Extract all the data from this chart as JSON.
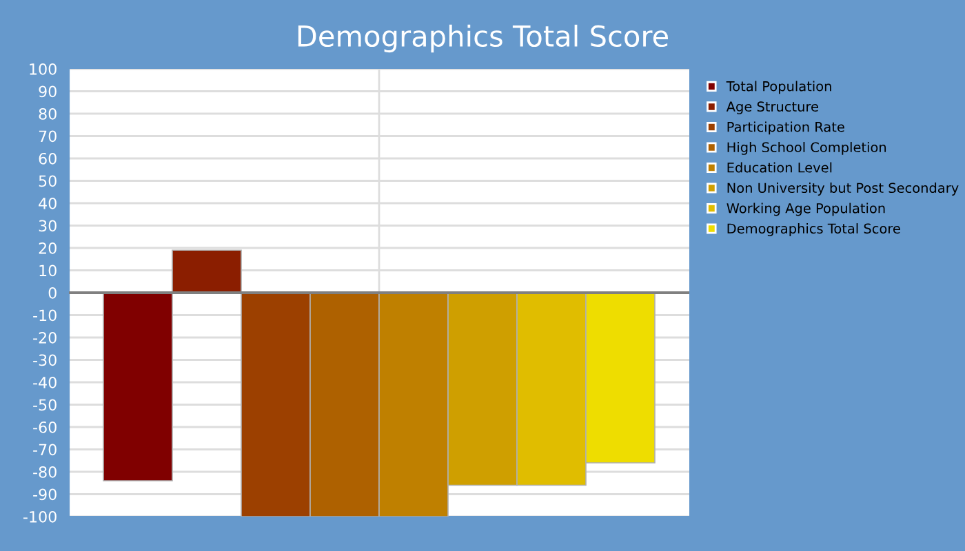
{
  "chart_data": {
    "type": "bar",
    "title": "Demographics Total Score",
    "categories": [
      null
    ],
    "series": [
      {
        "name": "Total Population",
        "color": "#800000",
        "values": [
          -84
        ]
      },
      {
        "name": "Age Structure",
        "color": "#8b1e00",
        "values": [
          19
        ]
      },
      {
        "name": "Participation Rate",
        "color": "#9c4000",
        "values": [
          -100
        ]
      },
      {
        "name": "High School Completion",
        "color": "#ae6100",
        "values": [
          -100
        ]
      },
      {
        "name": "Education Level",
        "color": "#bf8000",
        "values": [
          -100
        ]
      },
      {
        "name": "Non University but Post Secondary",
        "color": "#cf9f00",
        "values": [
          -86
        ]
      },
      {
        "name": "Working Age Population",
        "color": "#e0bd00",
        "values": [
          -86
        ]
      },
      {
        "name": "Demographics Total Score",
        "color": "#eedd00",
        "values": [
          -76
        ]
      }
    ],
    "ylim": [
      -100,
      100
    ],
    "yticks": [
      -100,
      -90,
      -80,
      -70,
      -60,
      -50,
      -40,
      -30,
      -20,
      -10,
      0,
      10,
      20,
      30,
      40,
      50,
      60,
      70,
      80,
      90,
      100
    ],
    "ref_lines": [
      {
        "axis": "y",
        "value": 0,
        "color": "#808080"
      }
    ],
    "grid": true,
    "legend": "right"
  }
}
